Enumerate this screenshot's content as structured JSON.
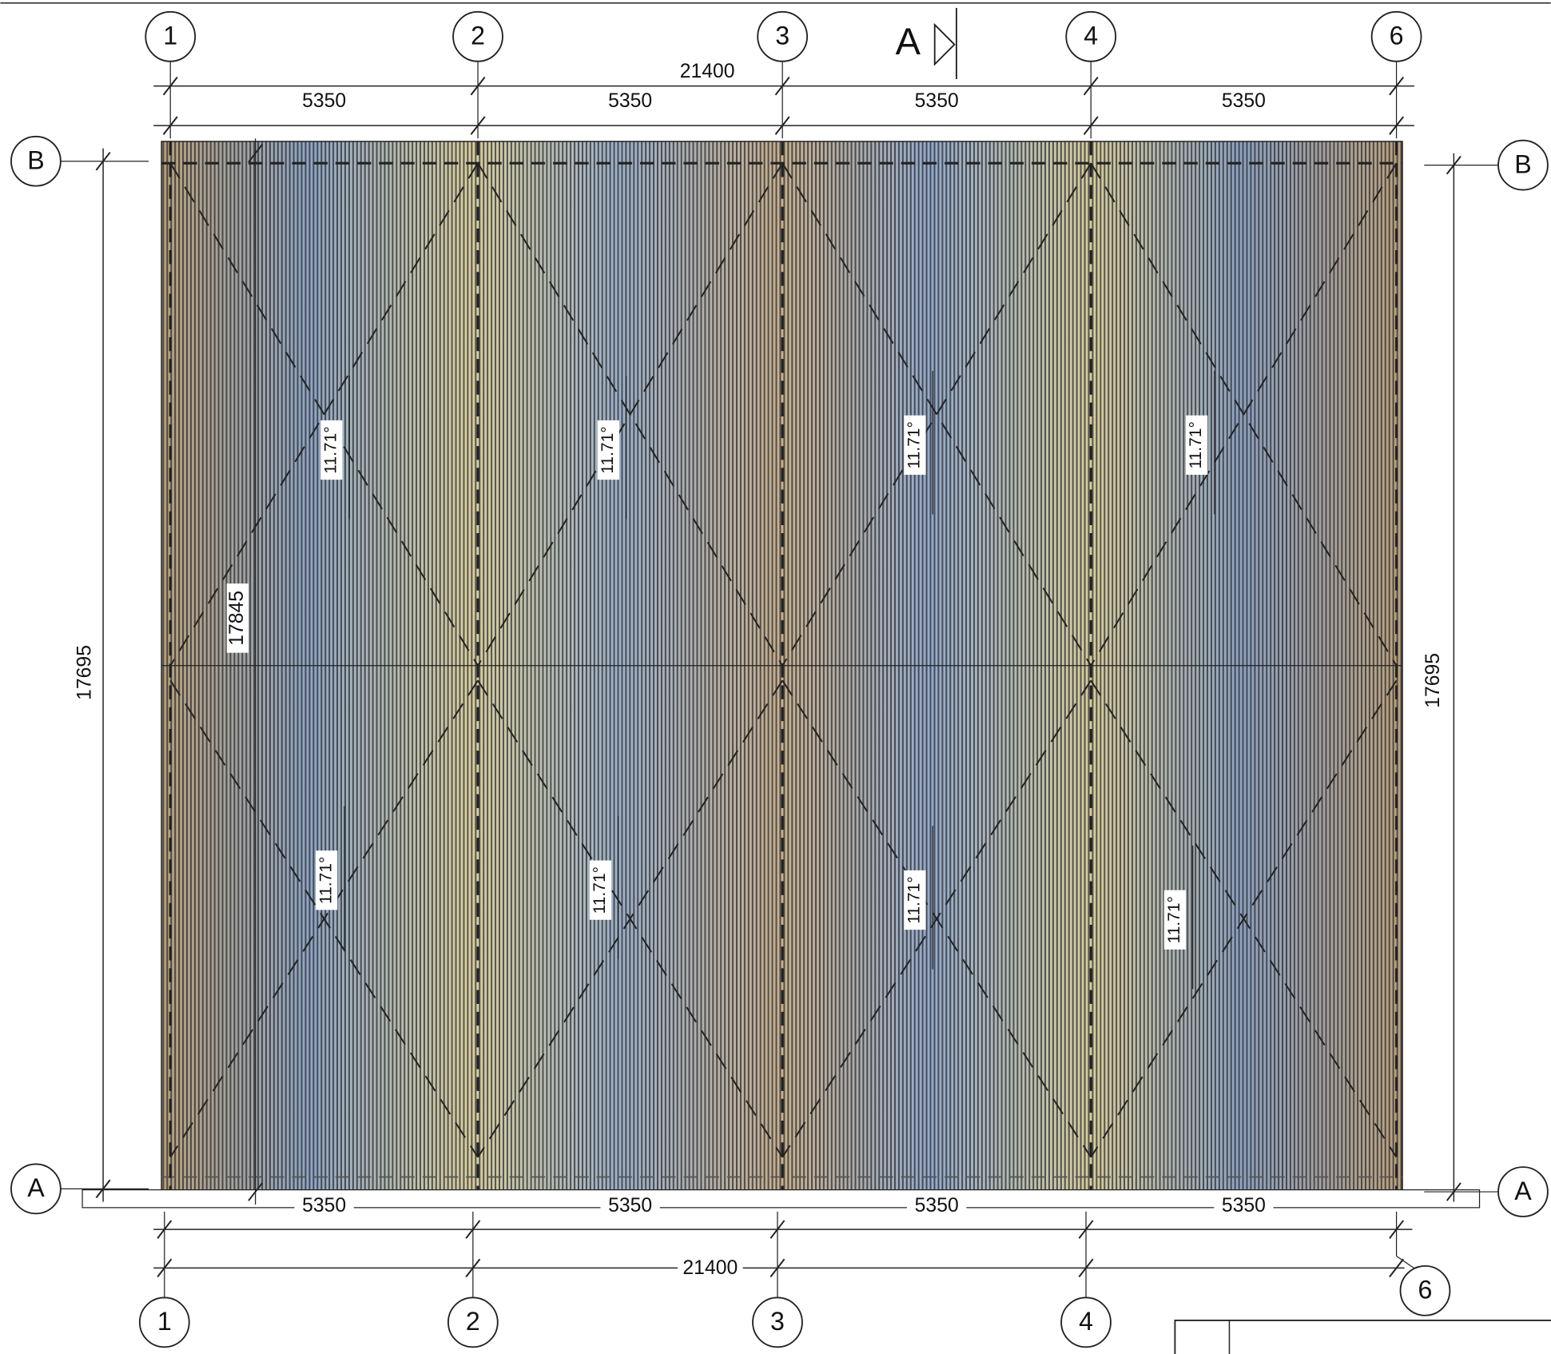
{
  "grid_axes": {
    "top": [
      "1",
      "2",
      "3",
      "4",
      "6"
    ],
    "bottom": [
      "1",
      "2",
      "3",
      "4",
      "6"
    ],
    "left": [
      "B",
      "A"
    ],
    "right": [
      "B",
      "A"
    ]
  },
  "section_marker": "A",
  "dimensions": {
    "top_overall": "21400",
    "top_spans": [
      "5350",
      "5350",
      "5350",
      "5350"
    ],
    "bottom_spans": [
      "5350",
      "5350",
      "5350",
      "5350"
    ],
    "bottom_overall": "21400",
    "left": "17695",
    "right": "17695",
    "inner": "17845"
  },
  "slope_labels": [
    "11.71°",
    "11.71°",
    "11.71°",
    "11.71°",
    "11.71°",
    "11.71°",
    "11.71°",
    "11.71°"
  ]
}
